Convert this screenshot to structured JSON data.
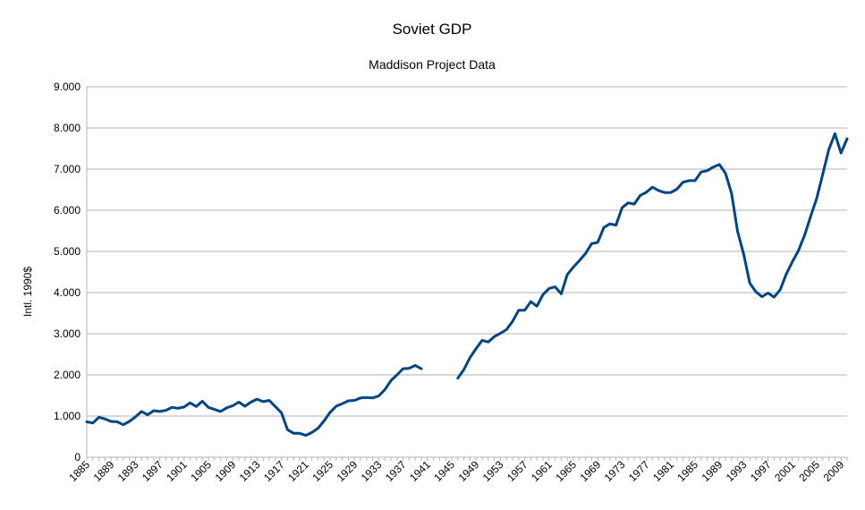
{
  "chart_data": {
    "type": "line",
    "title": "Soviet GDP",
    "subtitle": "Maddison Project Data",
    "ylabel": "Intl. 1990$",
    "xlabel": "",
    "xlim": [
      1885,
      2010
    ],
    "ylim": [
      0,
      9000
    ],
    "ytick_values": [
      0,
      1000,
      2000,
      3000,
      4000,
      5000,
      6000,
      7000,
      8000,
      9000
    ],
    "ytick_labels": [
      "0",
      "1.000",
      "2.000",
      "3.000",
      "4.000",
      "5.000",
      "6.000",
      "7.000",
      "8.000",
      "9.000"
    ],
    "xtick_labels": [
      "1885",
      "1889",
      "1893",
      "1897",
      "1901",
      "1905",
      "1909",
      "1913",
      "1917",
      "1921",
      "1925",
      "1929",
      "1933",
      "1937",
      "1941",
      "1945",
      "1949",
      "1953",
      "1957",
      "1961",
      "1965",
      "1969",
      "1973",
      "1977",
      "1981",
      "1985",
      "1989",
      "1993",
      "1997",
      "2001",
      "2005",
      "2009"
    ],
    "grid": true,
    "line_color": "#004586",
    "series": [
      {
        "segments": [
          {
            "x": [
              1885,
              1886,
              1887,
              1888,
              1889,
              1890,
              1891,
              1892,
              1893,
              1894,
              1895,
              1896,
              1897,
              1898,
              1899,
              1900,
              1901,
              1902,
              1903,
              1904,
              1905,
              1906,
              1907,
              1908,
              1909,
              1910,
              1911,
              1912,
              1913,
              1914,
              1915,
              1916,
              1917,
              1918,
              1919,
              1920,
              1921,
              1922,
              1923,
              1924,
              1925,
              1926,
              1927,
              1928,
              1929,
              1930,
              1931,
              1932,
              1933,
              1934,
              1935,
              1936,
              1937,
              1938,
              1939,
              1940,
              1941
            ],
            "y": [
              860,
              830,
              970,
              930,
              870,
              860,
              790,
              870,
              980,
              1110,
              1030,
              1130,
              1110,
              1140,
              1210,
              1190,
              1220,
              1320,
              1230,
              1360,
              1210,
              1160,
              1110,
              1200,
              1250,
              1340,
              1240,
              1340,
              1410,
              1350,
              1380,
              1230,
              1080,
              670,
              580,
              580,
              530,
              600,
              700,
              880,
              1090,
              1240,
              1300,
              1370,
              1380,
              1440,
              1450,
              1440,
              1490,
              1640,
              1860,
              2000,
              2150,
              2160,
              2230,
              2150,
              null
            ]
          },
          {
            "x": [
              1946,
              1947,
              1948,
              1949,
              1950,
              1951,
              1952,
              1953,
              1954,
              1955,
              1956,
              1957,
              1958,
              1959,
              1960,
              1961,
              1962,
              1963,
              1964,
              1965,
              1966,
              1967,
              1968,
              1969,
              1970,
              1971,
              1972,
              1973,
              1974,
              1975,
              1976,
              1977,
              1978,
              1979,
              1980,
              1981,
              1982,
              1983,
              1984,
              1985,
              1986,
              1987,
              1988,
              1989,
              1990,
              1991,
              1992,
              1993,
              1994,
              1995,
              1996,
              1997,
              1998,
              1999,
              2000,
              2001,
              2002,
              2003,
              2004,
              2005,
              2006,
              2007,
              2008,
              2009,
              2010
            ],
            "y": [
              1920,
              2130,
              2420,
              2640,
              2840,
              2800,
              2930,
              3010,
              3100,
              3300,
              3570,
              3570,
              3780,
              3670,
              3950,
              4100,
              4140,
              3970,
              4440,
              4620,
              4780,
              4950,
              5190,
              5220,
              5580,
              5670,
              5640,
              6060,
              6180,
              6150,
              6360,
              6440,
              6560,
              6480,
              6430,
              6430,
              6510,
              6680,
              6720,
              6720,
              6930,
              6960,
              7050,
              7110,
              6900,
              6410,
              5480,
              4930,
              4230,
              4020,
              3900,
              3990,
              3890,
              4070,
              4450,
              4750,
              5020,
              5390,
              5850,
              6290,
              6880,
              7480,
              7860,
              7390,
              7740
            ]
          }
        ]
      }
    ]
  }
}
